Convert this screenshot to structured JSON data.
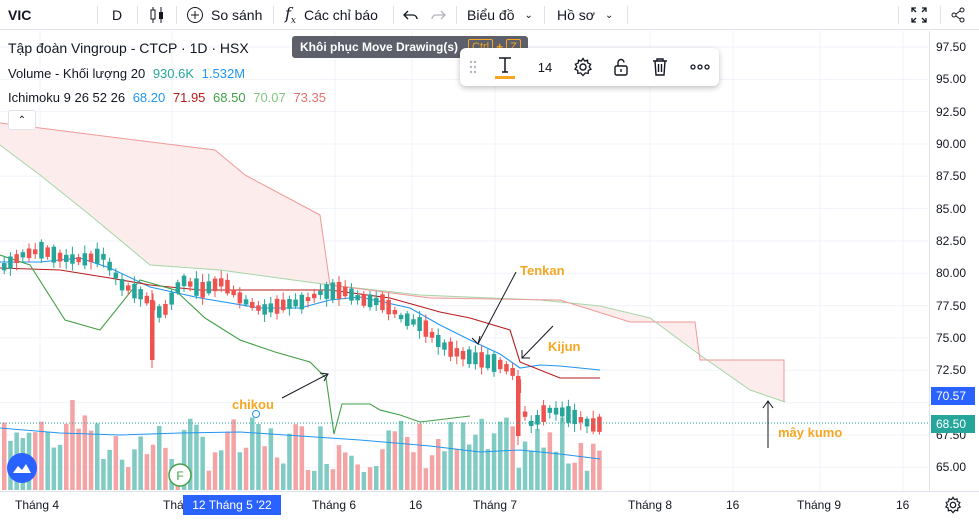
{
  "toolbar": {
    "symbol": "VIC",
    "interval": "D",
    "compare_label": "So sánh",
    "indicators_label": "Các chỉ báo",
    "chart_type_label": "Biểu đồ",
    "profile_label": "Hồ sơ"
  },
  "legend": {
    "title": "Tập đoàn Vingroup - CTCP · 1D · HSX",
    "volume_label": "Volume - Khối lượng 20",
    "volume_v1": "930.6K",
    "volume_v2": "1.532M",
    "ichimoku_label": "Ichimoku 9 26 52 26",
    "ichi_v1": "68.20",
    "ichi_v2": "71.95",
    "ichi_v3": "68.50",
    "ichi_v4": "70.07",
    "ichi_v5": "73.35"
  },
  "tooltip": {
    "text": "Khôi phục Move Drawing(s)",
    "key1": "Ctrl",
    "plus": "+",
    "key2": "Z"
  },
  "drawbar": {
    "font_size": "14"
  },
  "price_axis": {
    "labels": [
      "97.50",
      "95.00",
      "92.50",
      "90.00",
      "87.50",
      "85.00",
      "82.50",
      "80.00",
      "77.50",
      "75.00",
      "72.50",
      "67.50",
      "65.00"
    ],
    "badge_upper": "70.57",
    "badge_last": "68.50"
  },
  "time_axis": {
    "labels": [
      "Tháng 4",
      "Thá",
      "Tháng 6",
      "16",
      "Tháng 7",
      "Tháng 8",
      "16",
      "Tháng 9",
      "16"
    ],
    "crosshair_date": "12 Tháng 5 '22"
  },
  "annotations": {
    "tenkan": "Tenkan",
    "kijun": "Kijun",
    "chikou": "chikou",
    "kumo": "mây kumo"
  },
  "colors": {
    "up": "#26a69a",
    "down": "#ef5350",
    "tenkan": "#2196f3",
    "kijun": "#b71c1c",
    "chikou": "#43a047",
    "cloud_fill": "#fbe9e7",
    "cloud_edge_a": "#a5d6a7",
    "cloud_edge_b": "#ef9a9a",
    "annotation": "#f5a623"
  },
  "chart_data": {
    "type": "candlestick",
    "price_axis_ticks": [
      65.0,
      67.5,
      70.0,
      72.5,
      75.0,
      77.5,
      80.0,
      82.5,
      85.0,
      87.5,
      90.0,
      92.5,
      95.0,
      97.5
    ],
    "last_close": 68.5
  }
}
